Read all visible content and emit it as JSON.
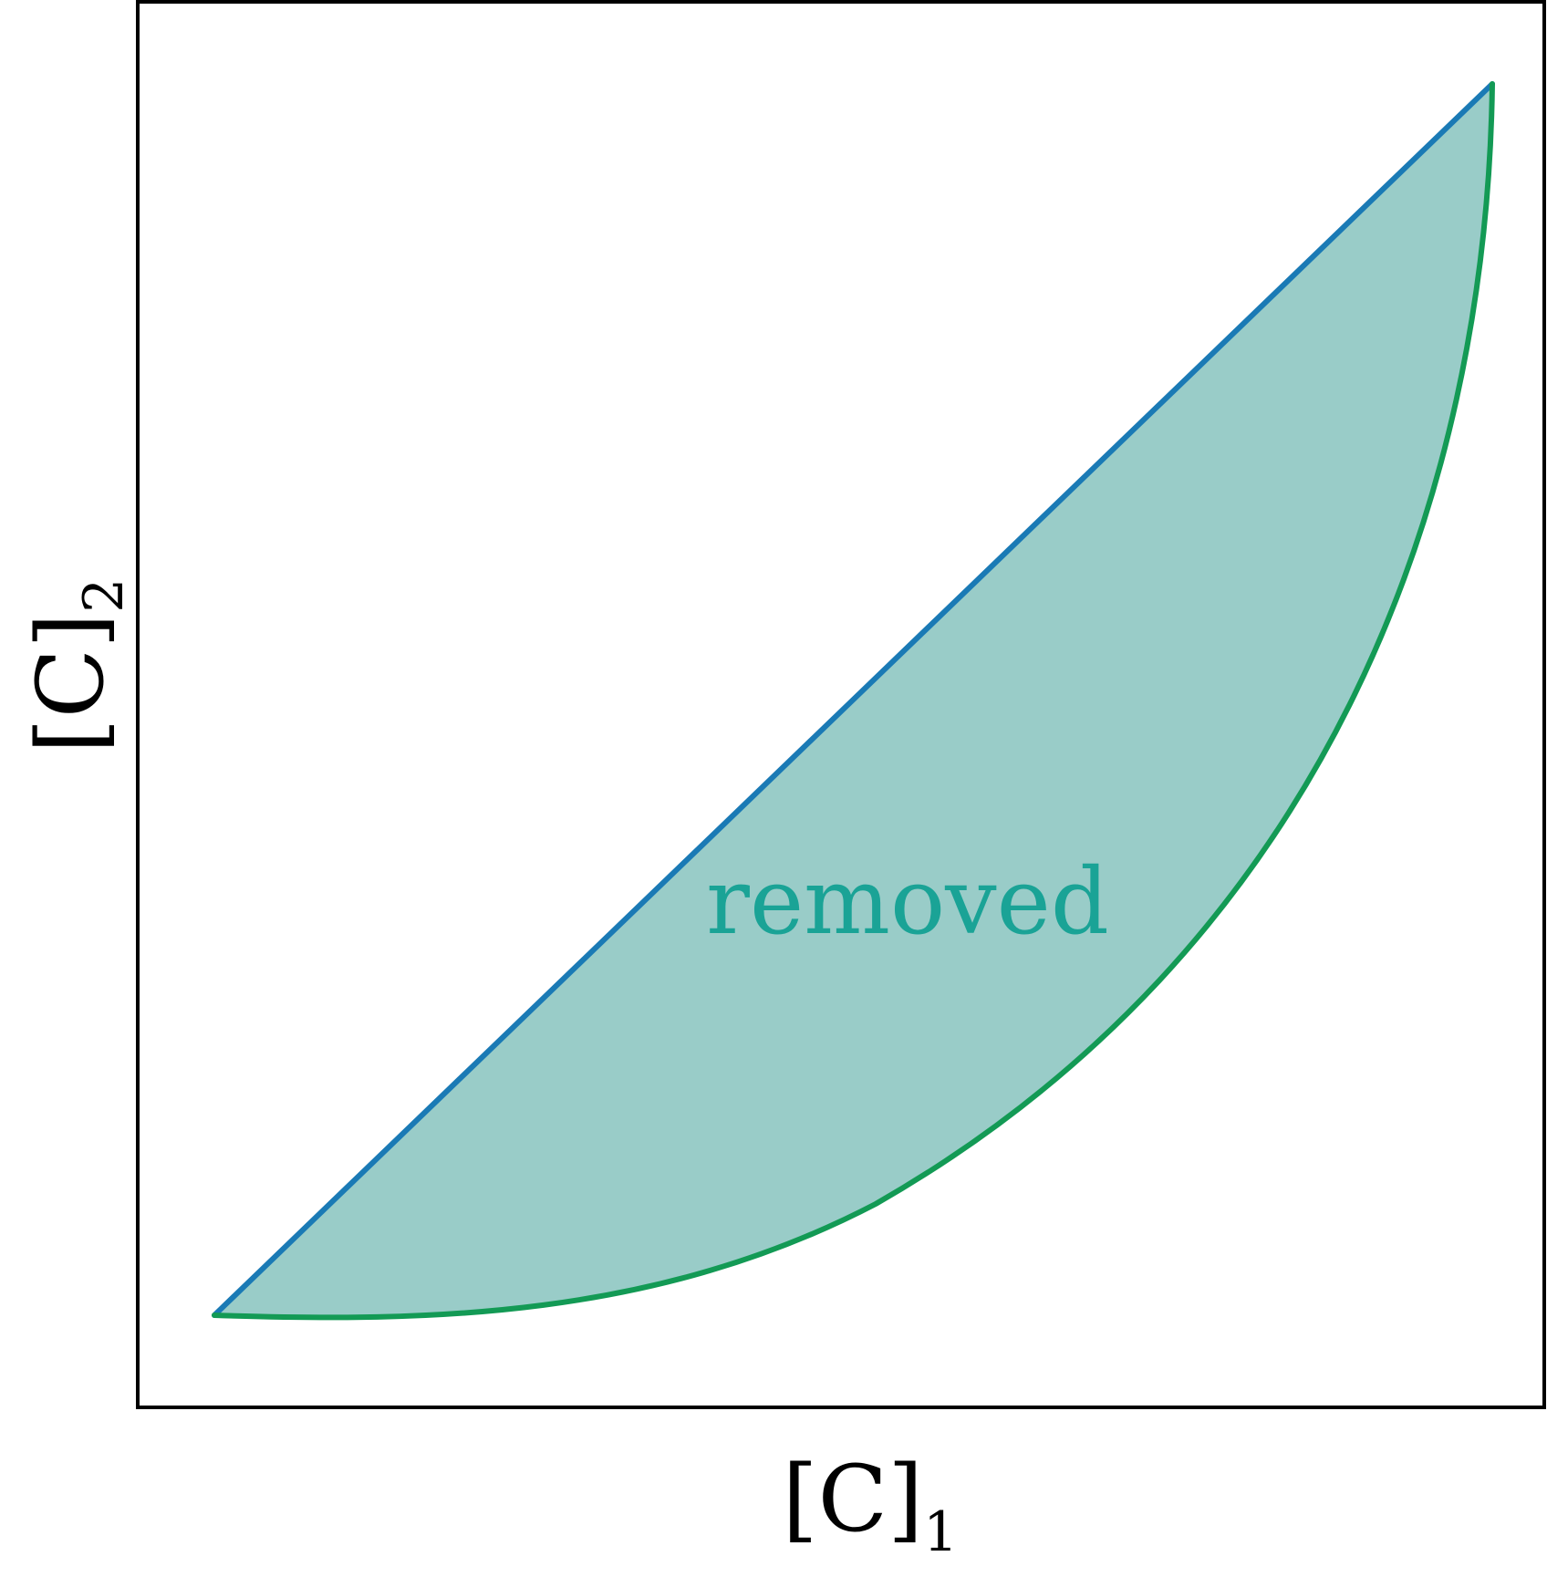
{
  "diagram": {
    "xlabel": {
      "base": "[C]",
      "subscript": "1"
    },
    "ylabel": {
      "base": "[C]",
      "subscript": "2"
    },
    "region_label": "removed",
    "colors": {
      "line": "#1a7ab5",
      "curve": "#139a55",
      "region_fill": "#99ccc8",
      "region_label": "#1aa396",
      "frame": "#000000"
    }
  }
}
